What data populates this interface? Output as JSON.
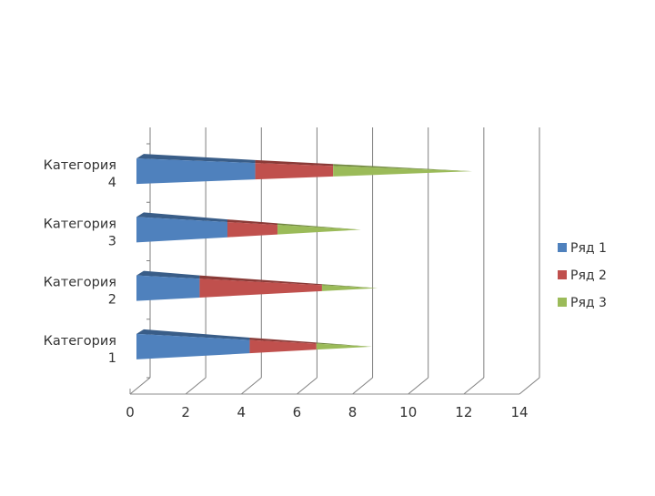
{
  "chart_data": {
    "type": "bar",
    "orientation": "horizontal",
    "stacked": true,
    "style": "3d-cone",
    "categories": [
      "Категория 1",
      "Категория 2",
      "Категория 3",
      "Категория 4"
    ],
    "category_label_lines": [
      [
        "Категория",
        "1"
      ],
      [
        "Категория",
        "2"
      ],
      [
        "Категория",
        "3"
      ],
      [
        "Категория",
        "4"
      ]
    ],
    "series": [
      {
        "name": "Ряд 1",
        "color": "#4f81bd",
        "values": [
          4.3,
          2.5,
          3.5,
          4.5
        ]
      },
      {
        "name": "Ряд 2",
        "color": "#c0504d",
        "values": [
          2.4,
          4.4,
          1.8,
          2.8
        ]
      },
      {
        "name": "Ряд 3",
        "color": "#9bbb59",
        "values": [
          2.0,
          2.0,
          3.0,
          5.0
        ]
      }
    ],
    "xlim": [
      0,
      14
    ],
    "xticks": [
      "0",
      "2",
      "4",
      "6",
      "8",
      "10",
      "12",
      "14"
    ],
    "grid": true,
    "legend": "right",
    "title": "",
    "xlabel": "",
    "ylabel": ""
  }
}
